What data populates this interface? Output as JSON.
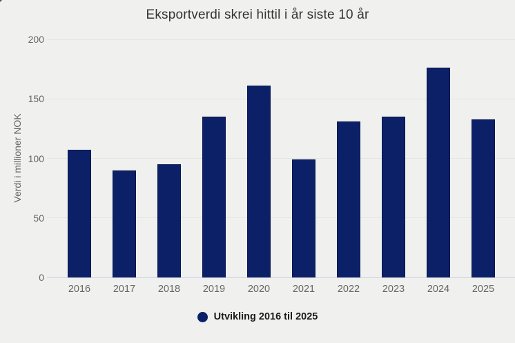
{
  "title": "Eksportverdi skrei hittil i år siste 10 år",
  "chart_data": {
    "type": "bar",
    "title": "Eksportverdi skrei hittil i år siste 10 år",
    "xlabel": "",
    "ylabel": "Verdi i millioner NOK",
    "categories": [
      "2016",
      "2017",
      "2018",
      "2019",
      "2020",
      "2021",
      "2022",
      "2023",
      "2024",
      "2025"
    ],
    "values": [
      107,
      90,
      95,
      135,
      161,
      99,
      131,
      135,
      176,
      133
    ],
    "series_name": "Utvikling 2016 til 2025",
    "ylim": [
      0,
      200
    ],
    "yticks": [
      0,
      50,
      100,
      150,
      200
    ],
    "grid": true,
    "legend_position": "bottom",
    "colors": {
      "bar": "#0c2068",
      "bar_border": "#0a1752",
      "background": "#f0f1ee",
      "gridline": "#e3e5e0",
      "axis_line": "#ccd0e8"
    }
  },
  "legend": {
    "label": "Utvikling 2016 til 2025"
  }
}
